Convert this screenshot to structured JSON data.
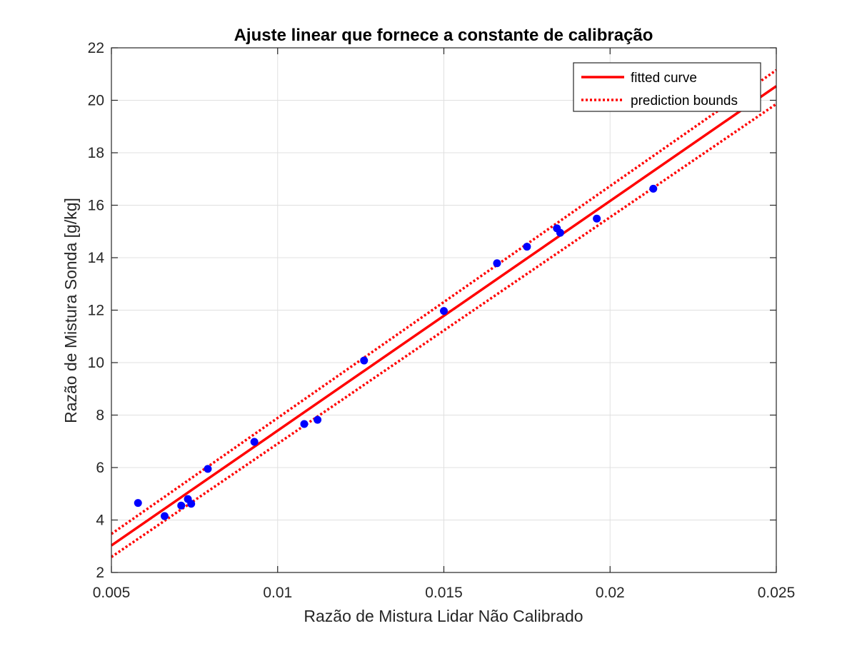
{
  "chart_data": {
    "type": "scatter",
    "title": "Ajuste linear que fornece a constante de calibração",
    "xlabel": "Razão de Mistura Lidar Não Calibrado",
    "ylabel": "Razão de Mistura Sonda [g/kg]",
    "xlim": [
      0.005,
      0.025
    ],
    "ylim": [
      2,
      22
    ],
    "xticks": [
      0.005,
      0.01,
      0.015,
      0.02,
      0.025
    ],
    "xtick_labels": [
      "0.005",
      "0.01",
      "0.015",
      "0.02",
      "0.025"
    ],
    "yticks": [
      2,
      4,
      6,
      8,
      10,
      12,
      14,
      16,
      18,
      20,
      22
    ],
    "ytick_labels": [
      "2",
      "4",
      "6",
      "8",
      "10",
      "12",
      "14",
      "16",
      "18",
      "20",
      "22"
    ],
    "grid": true,
    "legend_position": "top-right",
    "colors": {
      "points": "#0000ff",
      "fit": "#ff0000",
      "bounds": "#ff0000",
      "grid": "#e0e0e0",
      "axis": "#262626"
    },
    "points": {
      "x": [
        0.0058,
        0.0066,
        0.0071,
        0.0073,
        0.0074,
        0.0079,
        0.0093,
        0.0108,
        0.0112,
        0.0126,
        0.015,
        0.0166,
        0.0175,
        0.0184,
        0.0185,
        0.0196,
        0.0213
      ],
      "y": [
        4.65,
        4.15,
        4.55,
        4.8,
        4.62,
        5.95,
        6.98,
        7.66,
        7.82,
        10.08,
        11.97,
        13.79,
        14.42,
        15.12,
        14.95,
        15.49,
        16.63
      ]
    },
    "series": [
      {
        "name": "fitted curve",
        "style": "solid",
        "x": [
          0.005,
          0.025
        ],
        "y": [
          3.03,
          20.54
        ]
      },
      {
        "name": "prediction bounds",
        "style": "dotted",
        "x": [
          0.005,
          0.025
        ],
        "y": [
          3.47,
          21.15
        ]
      },
      {
        "name": "",
        "style": "dotted",
        "x": [
          0.005,
          0.025
        ],
        "y": [
          2.59,
          19.86
        ]
      }
    ]
  }
}
